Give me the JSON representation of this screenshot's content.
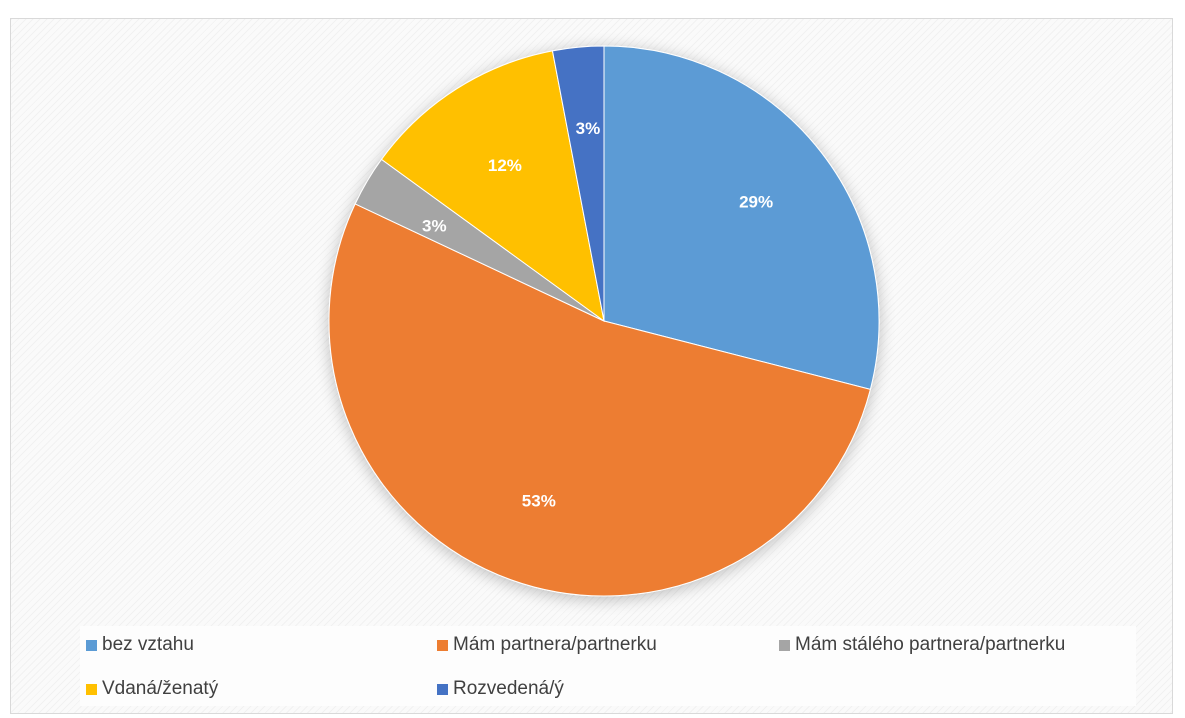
{
  "chart_data": {
    "type": "pie",
    "title": "",
    "legend_position": "bottom",
    "start_angle_deg": 0,
    "direction": "clockwise",
    "slices": [
      {
        "name": "bez vztahu",
        "value": 29,
        "label": "29%",
        "color": "#5b9bd5"
      },
      {
        "name": "Mám partnera/partnerku",
        "value": 53,
        "label": "53%",
        "color": "#ed7d31"
      },
      {
        "name": "Mám stálého partnera/partnerku",
        "value": 3,
        "label": "3%",
        "color": "#a5a5a5"
      },
      {
        "name": "Vdaná/ženatý",
        "value": 12,
        "label": "12%",
        "color": "#ffc000"
      },
      {
        "name": "Rozvedená/ý",
        "value": 3,
        "label": "3%",
        "color": "#4472c4"
      }
    ]
  }
}
